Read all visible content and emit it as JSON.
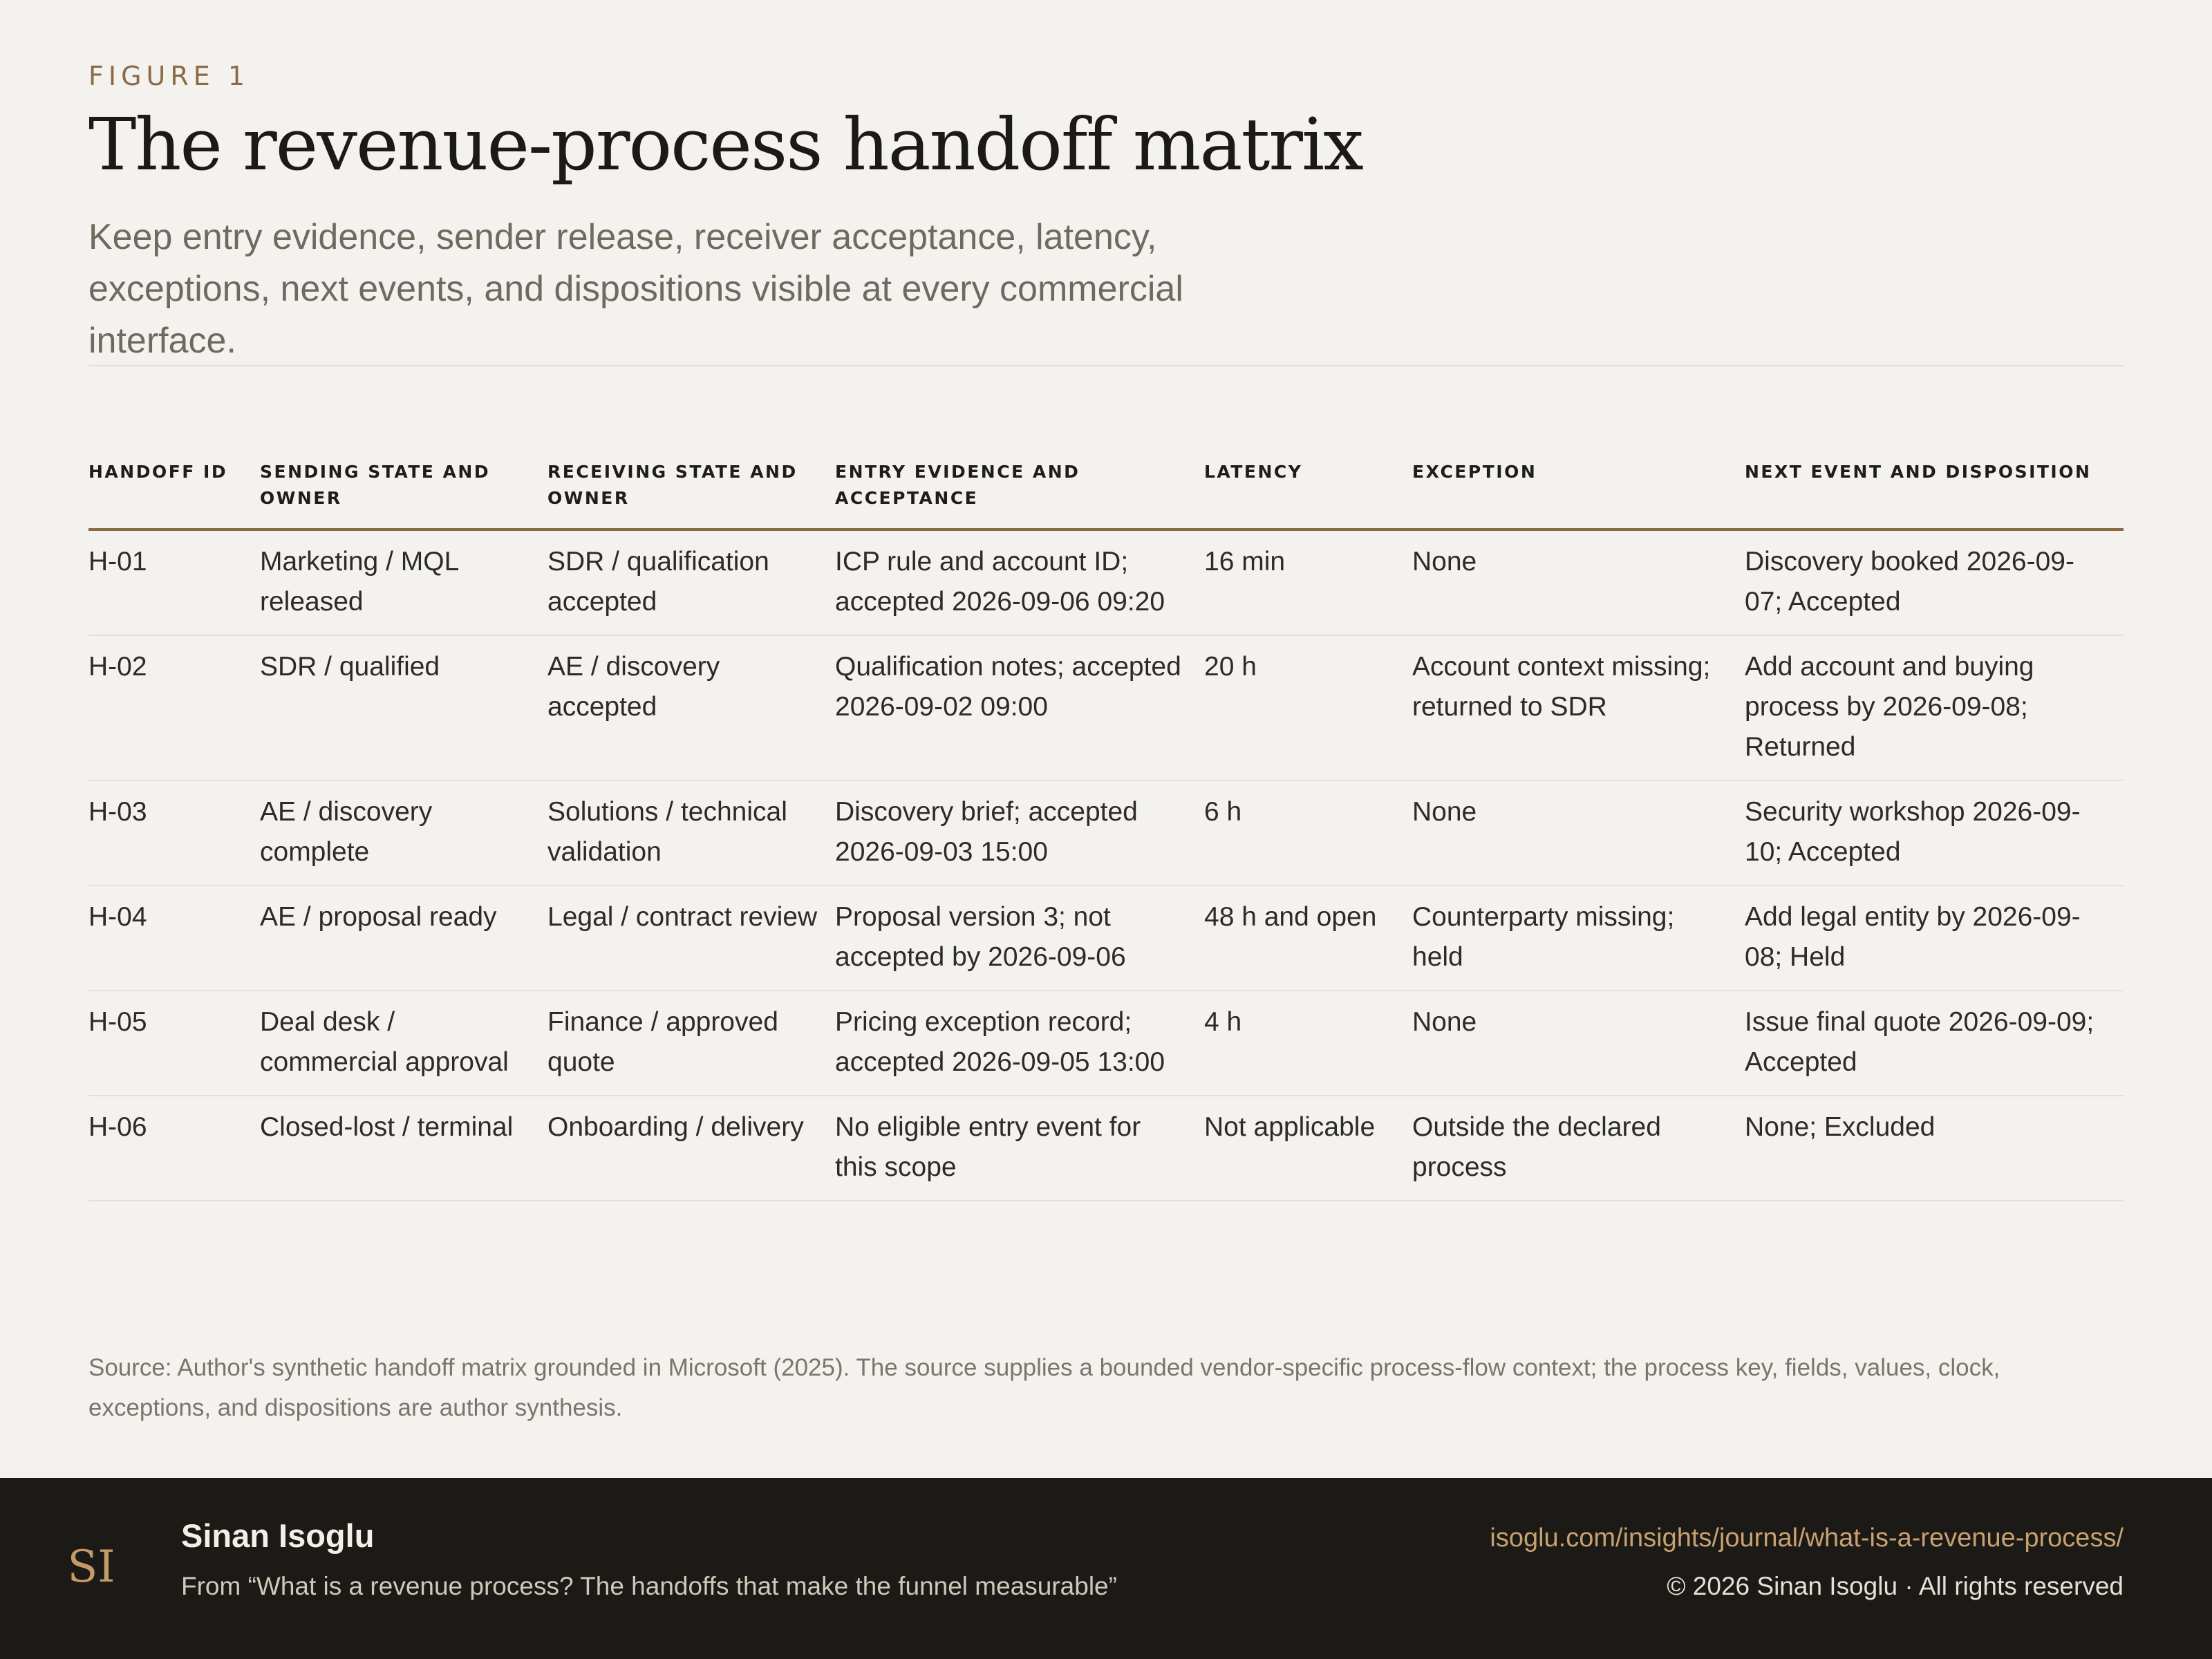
{
  "figure": {
    "eyebrow": "FIGURE 1",
    "title": "The revenue-process handoff matrix",
    "subtitle": "Keep entry evidence, sender release, receiver acceptance, latency, exceptions, next events, and dispositions visible at every commercial interface."
  },
  "table": {
    "columns": [
      "HANDOFF ID",
      "SENDING STATE AND OWNER",
      "RECEIVING STATE AND OWNER",
      "ENTRY EVIDENCE AND ACCEPTANCE",
      "LATENCY",
      "EXCEPTION",
      "NEXT EVENT AND DISPOSITION"
    ],
    "rows": [
      [
        "H-01",
        "Marketing / MQL released",
        "SDR / qualification accepted",
        "ICP rule and account ID; accepted 2026-09-06 09:20",
        "16 min",
        "None",
        "Discovery booked 2026-09-07; Accepted"
      ],
      [
        "H-02",
        "SDR / qualified",
        "AE / discovery accepted",
        "Qualification notes; accepted 2026-09-02 09:00",
        "20 h",
        "Account context missing; returned to SDR",
        "Add account and buying process by 2026-09-08; Returned"
      ],
      [
        "H-03",
        "AE / discovery complete",
        "Solutions / technical validation",
        "Discovery brief; accepted 2026-09-03 15:00",
        "6 h",
        "None",
        "Security workshop 2026-09-10; Accepted"
      ],
      [
        "H-04",
        "AE / proposal ready",
        "Legal / contract review",
        "Proposal version 3; not accepted by 2026-09-06",
        "48 h and open",
        "Counterparty missing; held",
        "Add legal entity by 2026-09-08; Held"
      ],
      [
        "H-05",
        "Deal desk / commercial approval",
        "Finance / approved quote",
        "Pricing exception record; accepted 2026-09-05 13:00",
        "4 h",
        "None",
        "Issue final quote 2026-09-09; Accepted"
      ],
      [
        "H-06",
        "Closed-lost / terminal",
        "Onboarding / delivery",
        "No eligible entry event for this scope",
        "Not applicable",
        "Outside the declared process",
        "None; Excluded"
      ]
    ]
  },
  "source_note": "Source: Author's synthetic handoff matrix grounded in Microsoft (2025). The source supplies a bounded vendor-specific process-flow context; the process key, fields, values, clock, exceptions, and dispositions are author synthesis.",
  "footer": {
    "logo_text": "SI",
    "author": "Sinan Isoglu",
    "from": "From “What is a revenue process? The handoffs that make the funnel measurable”",
    "url": "isoglu.com/insights/journal/what-is-a-revenue-process/",
    "copyright": "© 2026 Sinan Isoglu · All rights reserved"
  },
  "colors": {
    "background": "#f3f2ee",
    "accent": "#8a6a45",
    "footer_bg": "#1b1a16",
    "link": "#c9a070"
  }
}
